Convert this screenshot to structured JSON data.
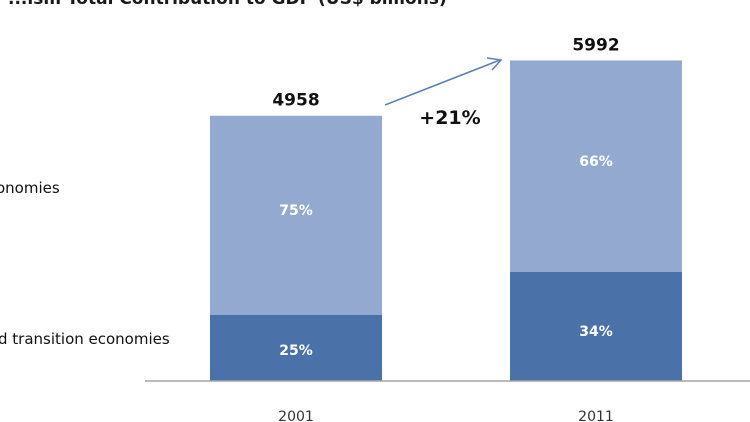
{
  "chart_data": {
    "type": "bar",
    "stacked": true,
    "title": "...ism Total Contribution to GDP (US$ billions)",
    "categories": [
      "2001",
      "2011"
    ],
    "totals": [
      4958,
      5992
    ],
    "total_labels": [
      "4958",
      "5992"
    ],
    "series": [
      {
        "name": "d transition  economies",
        "values": [
          1239.5,
          2037.28
        ],
        "share_labels": [
          "25%",
          "34%"
        ],
        "color": "#4a72a8"
      },
      {
        "name": "onomies",
        "values": [
          3718.5,
          3954.72
        ],
        "share_labels": [
          "75%",
          "66%"
        ],
        "color": "#93a9d0"
      }
    ],
    "annotation": "+21%",
    "ylim": [
      0,
      6300
    ],
    "grid": false,
    "legend": "left",
    "xlabel": "",
    "ylabel": ""
  },
  "colors": {
    "arrow": "#5b7fb5",
    "axis": "#a6a6a6"
  }
}
